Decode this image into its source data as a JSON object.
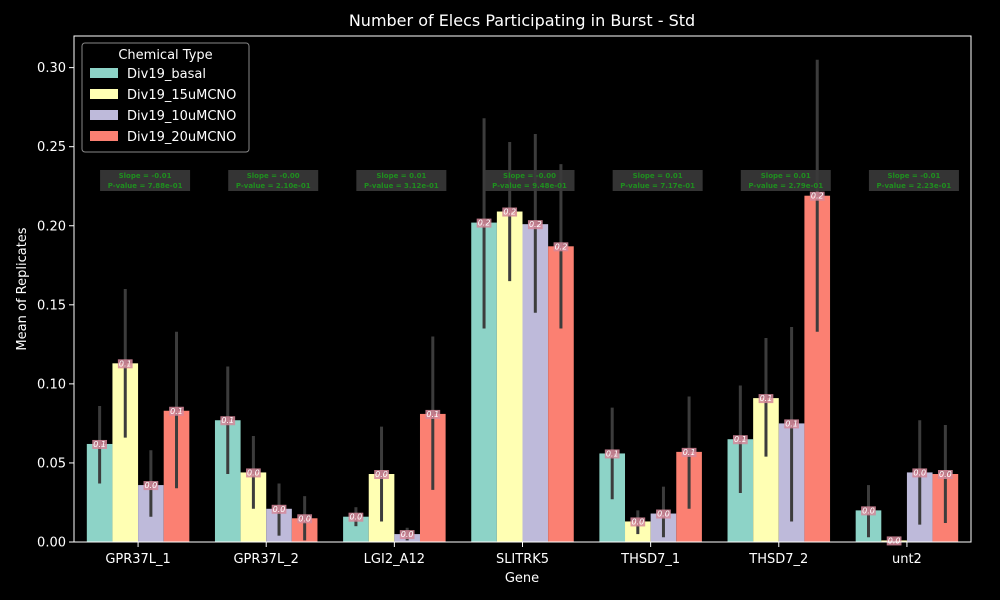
{
  "chart_data": {
    "type": "bar",
    "title": "Number of Elecs Participating in Burst - Std",
    "xlabel": "Gene",
    "ylabel": "Mean of Replicates",
    "ylim": [
      0,
      0.32
    ],
    "yticks": [
      "0.00",
      "0.05",
      "0.10",
      "0.15",
      "0.20",
      "0.25",
      "0.30"
    ],
    "grid": false,
    "categories": [
      "GPR37L_1",
      "GPR37L_2",
      "LGI2_A12",
      "SLITRK5",
      "THSD7_1",
      "THSD7_2",
      "unt2"
    ],
    "legend": {
      "title": "Chemical Type",
      "placement": "top-left"
    },
    "series": [
      {
        "name": "Div19_basal",
        "color": "#8dd3c7",
        "values": [
          0.062,
          0.077,
          0.016,
          0.202,
          0.056,
          0.065,
          0.02
        ],
        "ci_low": [
          0.037,
          0.043,
          0.01,
          0.135,
          0.027,
          0.031,
          0.003
        ],
        "ci_high": [
          0.086,
          0.111,
          0.022,
          0.268,
          0.085,
          0.099,
          0.036
        ],
        "labels": [
          "0.1",
          "0.1",
          "0.0",
          "0.2",
          "0.1",
          "0.1",
          "0.0"
        ]
      },
      {
        "name": "Div19_15uMCNO",
        "color": "#ffffb3",
        "values": [
          0.113,
          0.044,
          0.043,
          0.209,
          0.013,
          0.091,
          0.001
        ],
        "ci_low": [
          0.066,
          0.021,
          0.013,
          0.165,
          0.005,
          0.054,
          0.0
        ],
        "ci_high": [
          0.16,
          0.067,
          0.073,
          0.253,
          0.02,
          0.129,
          0.002
        ],
        "labels": [
          "0.1",
          "0.0",
          "0.0",
          "0.2",
          "0.0",
          "0.1",
          "0.0"
        ]
      },
      {
        "name": "Div19_10uMCNO",
        "color": "#bebada",
        "values": [
          0.036,
          0.021,
          0.005,
          0.201,
          0.018,
          0.075,
          0.044
        ],
        "ci_low": [
          0.016,
          0.004,
          0.001,
          0.145,
          0.003,
          0.013,
          0.011
        ],
        "ci_high": [
          0.058,
          0.037,
          0.009,
          0.258,
          0.035,
          0.136,
          0.077
        ],
        "labels": [
          "0.0",
          "0.0",
          "0.0",
          "0.2",
          "0.0",
          "0.1",
          "0.0"
        ]
      },
      {
        "name": "Div19_20uMCNO",
        "color": "#fb8072",
        "values": [
          0.083,
          0.015,
          0.081,
          0.187,
          0.057,
          0.219,
          0.043
        ],
        "ci_low": [
          0.034,
          0.001,
          0.033,
          0.135,
          0.021,
          0.133,
          0.012
        ],
        "ci_high": [
          0.133,
          0.029,
          0.13,
          0.239,
          0.092,
          0.305,
          0.074
        ],
        "labels": [
          "0.1",
          "0.0",
          "0.1",
          "0.2",
          "0.1",
          "0.2",
          "0.0"
        ]
      }
    ],
    "annotations": [
      {
        "category": "GPR37L_1",
        "line1": "Slope = -0.01",
        "line2": "P-value = 7.88e-01"
      },
      {
        "category": "GPR37L_2",
        "line1": "Slope = -0.00",
        "line2": "P-value = 2.10e-01"
      },
      {
        "category": "LGI2_A12",
        "line1": "Slope = 0.01",
        "line2": "P-value = 3.12e-01"
      },
      {
        "category": "SLITRK5",
        "line1": "Slope = -0.00",
        "line2": "P-value = 9.48e-01"
      },
      {
        "category": "THSD7_1",
        "line1": "Slope = 0.01",
        "line2": "P-value = 7.17e-01"
      },
      {
        "category": "THSD7_2",
        "line1": "Slope = 0.01",
        "line2": "P-value = 2.79e-01"
      },
      {
        "category": "unt2",
        "line1": "Slope = -0.01",
        "line2": "P-value = 2.23e-01"
      }
    ]
  }
}
